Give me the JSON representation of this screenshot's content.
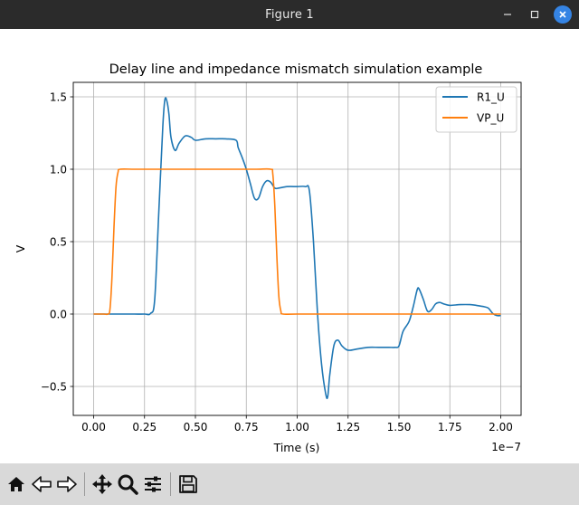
{
  "window": {
    "title": "Figure 1",
    "minimize_icon": "minimize-icon",
    "maximize_icon": "maximize-icon",
    "close_icon": "close-icon"
  },
  "toolbar": {
    "buttons": [
      "home-icon",
      "back-arrow-icon",
      "forward-arrow-icon",
      "pan-icon",
      "zoom-icon",
      "configure-subplots-icon",
      "save-icon"
    ]
  },
  "chart_data": {
    "type": "line",
    "title": "Delay line and impedance mismatch simulation example",
    "xlabel": "Time (s)",
    "ylabel": "V",
    "x_offset_label": "1e−7",
    "xlim": [
      -0.1,
      2.1
    ],
    "ylim": [
      -0.7,
      1.6
    ],
    "x_ticks": [
      0,
      0.25,
      0.5,
      0.75,
      1.0,
      1.25,
      1.5,
      1.75,
      2.0
    ],
    "x_tick_labels": [
      "0.00",
      "0.25",
      "0.50",
      "0.75",
      "1.00",
      "1.25",
      "1.50",
      "1.75",
      "2.00"
    ],
    "y_ticks": [
      -0.5,
      0,
      0.5,
      1.0,
      1.5
    ],
    "y_tick_labels": [
      "−0.5",
      "0.0",
      "0.5",
      "1.0",
      "1.5"
    ],
    "grid": true,
    "legend_position": "top-right",
    "series": [
      {
        "name": "R1_U",
        "color": "#1f77b4",
        "points": [
          [
            0,
            0
          ],
          [
            0.05,
            0
          ],
          [
            0.1,
            0
          ],
          [
            0.15,
            0
          ],
          [
            0.2,
            0
          ],
          [
            0.25,
            0
          ],
          [
            0.28,
            0.005
          ],
          [
            0.3,
            0.1
          ],
          [
            0.32,
            0.7
          ],
          [
            0.34,
            1.3
          ],
          [
            0.35,
            1.48
          ],
          [
            0.36,
            1.47
          ],
          [
            0.37,
            1.38
          ],
          [
            0.38,
            1.22
          ],
          [
            0.4,
            1.13
          ],
          [
            0.42,
            1.18
          ],
          [
            0.45,
            1.23
          ],
          [
            0.48,
            1.22
          ],
          [
            0.5,
            1.2
          ],
          [
            0.55,
            1.21
          ],
          [
            0.6,
            1.21
          ],
          [
            0.65,
            1.21
          ],
          [
            0.7,
            1.2
          ],
          [
            0.71,
            1.15
          ],
          [
            0.73,
            1.08
          ],
          [
            0.75,
            1.0
          ],
          [
            0.77,
            0.9
          ],
          [
            0.79,
            0.8
          ],
          [
            0.81,
            0.8
          ],
          [
            0.83,
            0.88
          ],
          [
            0.85,
            0.92
          ],
          [
            0.87,
            0.91
          ],
          [
            0.89,
            0.87
          ],
          [
            0.91,
            0.87
          ],
          [
            0.95,
            0.88
          ],
          [
            1.0,
            0.88
          ],
          [
            1.04,
            0.88
          ],
          [
            1.06,
            0.85
          ],
          [
            1.08,
            0.5
          ],
          [
            1.1,
            0.0
          ],
          [
            1.12,
            -0.35
          ],
          [
            1.14,
            -0.55
          ],
          [
            1.15,
            -0.57
          ],
          [
            1.16,
            -0.42
          ],
          [
            1.18,
            -0.22
          ],
          [
            1.2,
            -0.18
          ],
          [
            1.22,
            -0.22
          ],
          [
            1.25,
            -0.25
          ],
          [
            1.3,
            -0.24
          ],
          [
            1.35,
            -0.23
          ],
          [
            1.4,
            -0.23
          ],
          [
            1.45,
            -0.23
          ],
          [
            1.48,
            -0.23
          ],
          [
            1.5,
            -0.22
          ],
          [
            1.52,
            -0.12
          ],
          [
            1.55,
            -0.05
          ],
          [
            1.57,
            0.05
          ],
          [
            1.59,
            0.17
          ],
          [
            1.6,
            0.17
          ],
          [
            1.62,
            0.1
          ],
          [
            1.64,
            0.02
          ],
          [
            1.66,
            0.03
          ],
          [
            1.68,
            0.07
          ],
          [
            1.7,
            0.08
          ],
          [
            1.72,
            0.07
          ],
          [
            1.75,
            0.06
          ],
          [
            1.8,
            0.065
          ],
          [
            1.85,
            0.065
          ],
          [
            1.88,
            0.06
          ],
          [
            1.9,
            0.055
          ],
          [
            1.92,
            0.05
          ],
          [
            1.94,
            0.04
          ],
          [
            1.96,
            0.005
          ],
          [
            1.98,
            -0.01
          ],
          [
            2.0,
            -0.01
          ]
        ]
      },
      {
        "name": "VP_U",
        "color": "#ff7f0e",
        "points": [
          [
            0,
            0
          ],
          [
            0.05,
            0
          ],
          [
            0.07,
            0.0
          ],
          [
            0.08,
            0.03
          ],
          [
            0.09,
            0.25
          ],
          [
            0.1,
            0.6
          ],
          [
            0.11,
            0.88
          ],
          [
            0.12,
            0.98
          ],
          [
            0.13,
            1.0
          ],
          [
            0.2,
            1.0
          ],
          [
            0.3,
            1.0
          ],
          [
            0.4,
            1.0
          ],
          [
            0.5,
            1.0
          ],
          [
            0.6,
            1.0
          ],
          [
            0.7,
            1.0
          ],
          [
            0.8,
            1.0
          ],
          [
            0.87,
            1.0
          ],
          [
            0.88,
            0.97
          ],
          [
            0.89,
            0.75
          ],
          [
            0.9,
            0.4
          ],
          [
            0.91,
            0.12
          ],
          [
            0.92,
            0.02
          ],
          [
            0.93,
            0.0
          ],
          [
            1.0,
            0
          ],
          [
            1.25,
            0
          ],
          [
            1.5,
            0
          ],
          [
            1.75,
            0
          ],
          [
            2.0,
            0
          ]
        ]
      }
    ]
  }
}
